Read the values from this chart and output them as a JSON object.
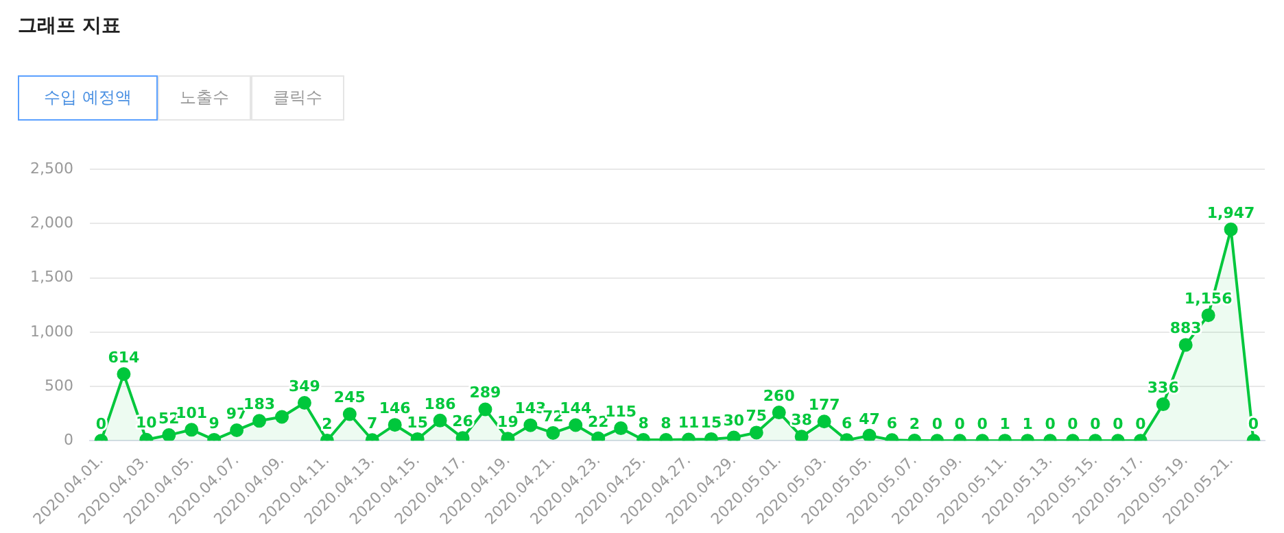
{
  "chart_data": {
    "type": "area",
    "title": "그래프 지표",
    "annotations": [
      "수입 예정액",
      "노출수",
      "클릭수"
    ],
    "categories": [
      "2020.04.01.",
      null,
      "2020.04.03.",
      null,
      "2020.04.05.",
      null,
      "2020.04.07.",
      null,
      "2020.04.09.",
      null,
      "2020.04.11.",
      null,
      "2020.04.13.",
      null,
      "2020.04.15.",
      null,
      "2020.04.17.",
      null,
      "2020.04.19.",
      null,
      "2020.04.21.",
      null,
      "2020.04.23.",
      null,
      "2020.04.25.",
      null,
      "2020.04.27.",
      null,
      "2020.04.29.",
      null,
      "2020.05.01.",
      null,
      "2020.05.03.",
      null,
      "2020.05.05.",
      null,
      "2020.05.07.",
      null,
      "2020.05.09.",
      null,
      "2020.05.11.",
      null,
      "2020.05.13.",
      null,
      "2020.05.15.",
      null,
      "2020.05.17.",
      null,
      "2020.05.19.",
      null,
      "2020.05.21.",
      null
    ],
    "series": [
      {
        "color": "#00c73c",
        "values": [
          0,
          614,
          10,
          52,
          101,
          9,
          97,
          183,
          220,
          349,
          2,
          245,
          7,
          146,
          15,
          186,
          26,
          289,
          19,
          143,
          72,
          144,
          22,
          115,
          8,
          8,
          11,
          15,
          30,
          75,
          260,
          38,
          177,
          6,
          47,
          6,
          2,
          0,
          0,
          0,
          1,
          1,
          0,
          0,
          0,
          0,
          0,
          336,
          883,
          1156,
          1947,
          0
        ],
        "value_labels": [
          "0",
          "614",
          "10",
          "52",
          "101",
          "9",
          "97",
          "183",
          null,
          "349",
          "2",
          "245",
          "7",
          "146",
          "15",
          "186",
          "26",
          "289",
          "19",
          "143",
          "72",
          "144",
          "22",
          "115",
          "8",
          "8",
          "11",
          "15",
          "30",
          "75",
          "260",
          "38",
          "177",
          "6",
          "47",
          "6",
          "2",
          "0",
          "0",
          "0",
          "1",
          "1",
          "0",
          "0",
          "0",
          "0",
          "0",
          "336",
          "883",
          "1,156",
          "1,947",
          "0"
        ]
      }
    ],
    "ylim": [
      0,
      2500
    ],
    "yticks": [
      0,
      {
        "value": 500,
        "label": "500"
      },
      {
        "value": 1000,
        "label": "1,000"
      },
      {
        "value": 1500,
        "label": "1,500"
      },
      {
        "value": 2000,
        "label": "2,000"
      },
      {
        "value": 2500,
        "label": "2,500"
      }
    ],
    "grid": "y",
    "marker": "circle",
    "legend": false
  }
}
